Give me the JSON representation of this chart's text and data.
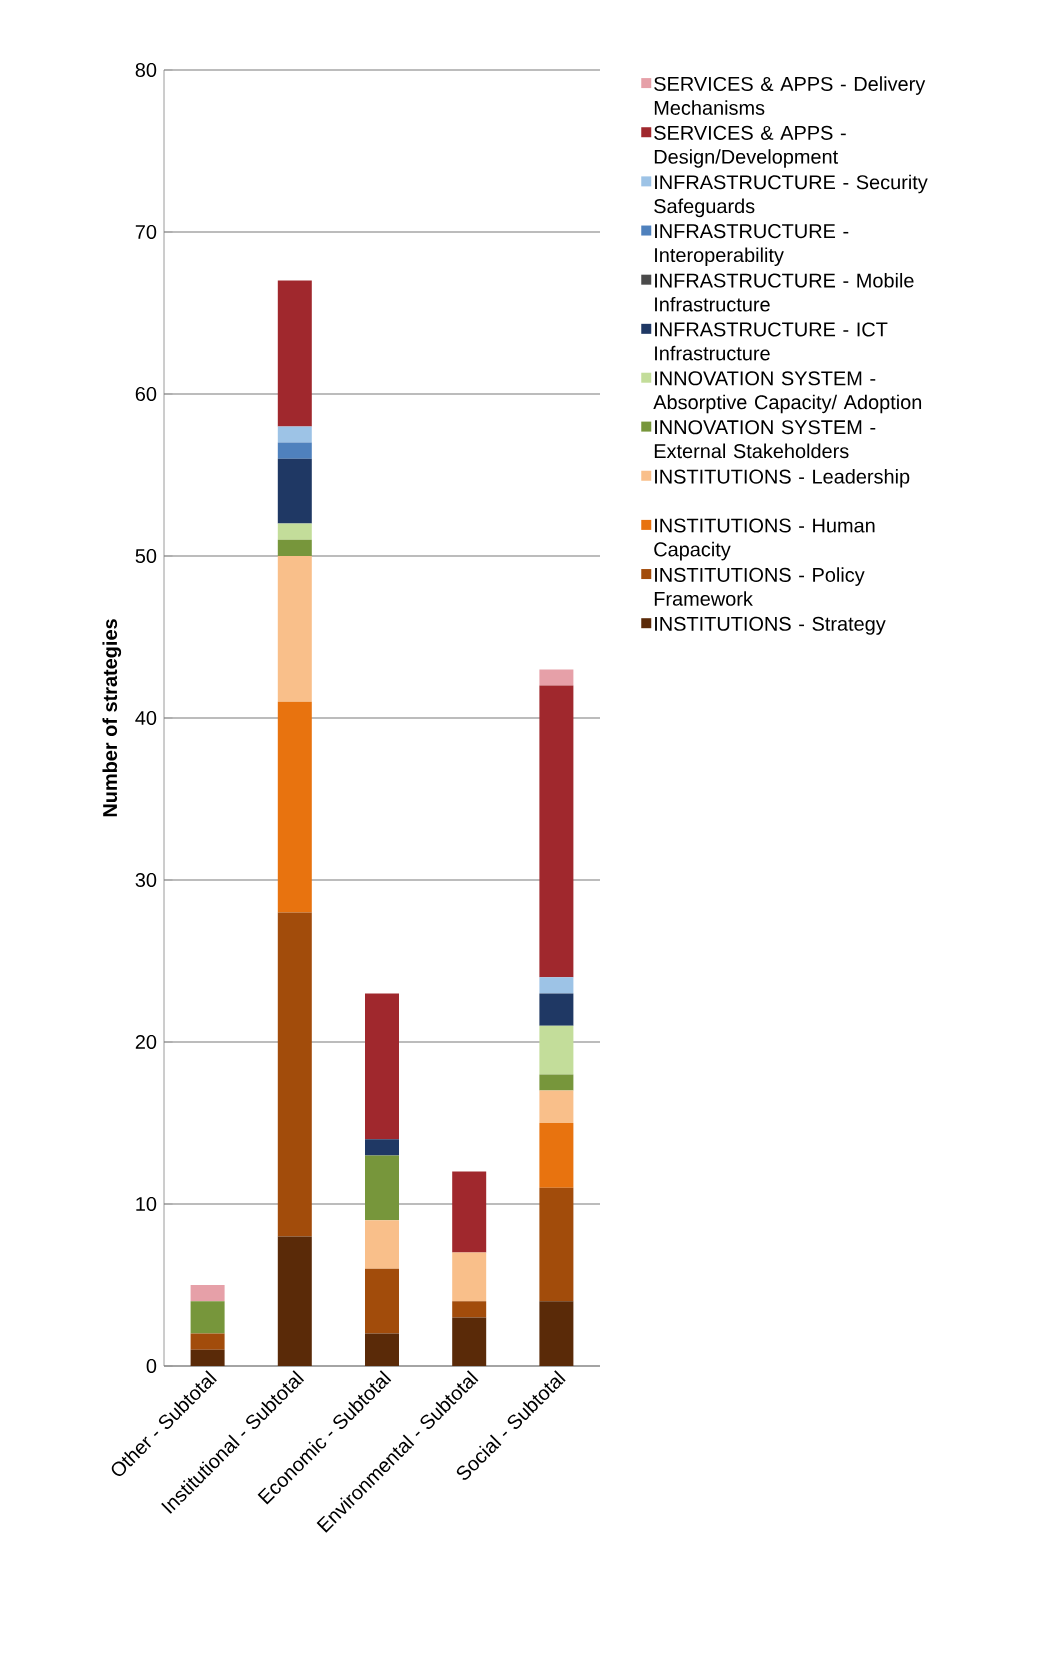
{
  "chart_data": {
    "type": "bar",
    "stacked": true,
    "ylabel": "**Number of strategies**",
    "categories": [
      "Other - Subtotal",
      "Institutional - Subtotal",
      "Economic - Subtotal",
      "Environmental - Subtotal",
      "Social - Subtotal"
    ],
    "series": [
      {
        "name": "INSTITUTIONS - Strategy",
        "color": "#5a2a08",
        "values": [
          1,
          8,
          2,
          3,
          4
        ]
      },
      {
        "name": "INSTITUTIONS - Policy Framework",
        "color": "#a24c0b",
        "values": [
          1,
          20,
          4,
          1,
          7
        ]
      },
      {
        "name": "INSTITUTIONS - Human Capacity",
        "color": "#e8730f",
        "values": [
          0,
          13,
          0,
          0,
          4
        ]
      },
      {
        "name": "INSTITUTIONS - Leadership",
        "color": "#f9bf8a",
        "values": [
          0,
          9,
          3,
          3,
          2
        ]
      },
      {
        "name": "INNOVATION SYSTEM - External Stakeholders",
        "color": "#77963b",
        "values": [
          2,
          1,
          4,
          0,
          1
        ]
      },
      {
        "name": "INNOVATION SYSTEM - Absorptive Capacity/ Adoption",
        "color": "#c3dd9a",
        "values": [
          0,
          1,
          0,
          0,
          3
        ]
      },
      {
        "name": "INFRASTRUCTURE - ICT Infrastructure",
        "color": "#1f3864",
        "values": [
          0,
          4,
          1,
          0,
          2
        ]
      },
      {
        "name": "INFRASTRUCTURE - Mobile Infrastructure",
        "color": "#4a4a4a",
        "values": [
          0,
          0,
          0,
          0,
          0
        ]
      },
      {
        "name": "INFRASTRUCTURE - Interoperability",
        "color": "#4f81bd",
        "values": [
          0,
          1,
          0,
          0,
          0
        ]
      },
      {
        "name": "INFRASTRUCTURE - Security Safeguards",
        "color": "#9dc3e6",
        "values": [
          0,
          1,
          0,
          0,
          1
        ]
      },
      {
        "name": "SERVICES & APPS - Design/Development",
        "color": "#a0282d",
        "values": [
          0,
          9,
          9,
          5,
          18
        ]
      },
      {
        "name": "SERVICES & APPS - Delivery Mechanisms",
        "color": "#e6a0a8",
        "values": [
          1,
          0,
          0,
          0,
          1
        ]
      }
    ],
    "ylim": [
      0,
      80
    ],
    "yticks": [
      0,
      10,
      20,
      30,
      40,
      50,
      60,
      70,
      80
    ],
    "grid": "y",
    "legend": "right"
  }
}
